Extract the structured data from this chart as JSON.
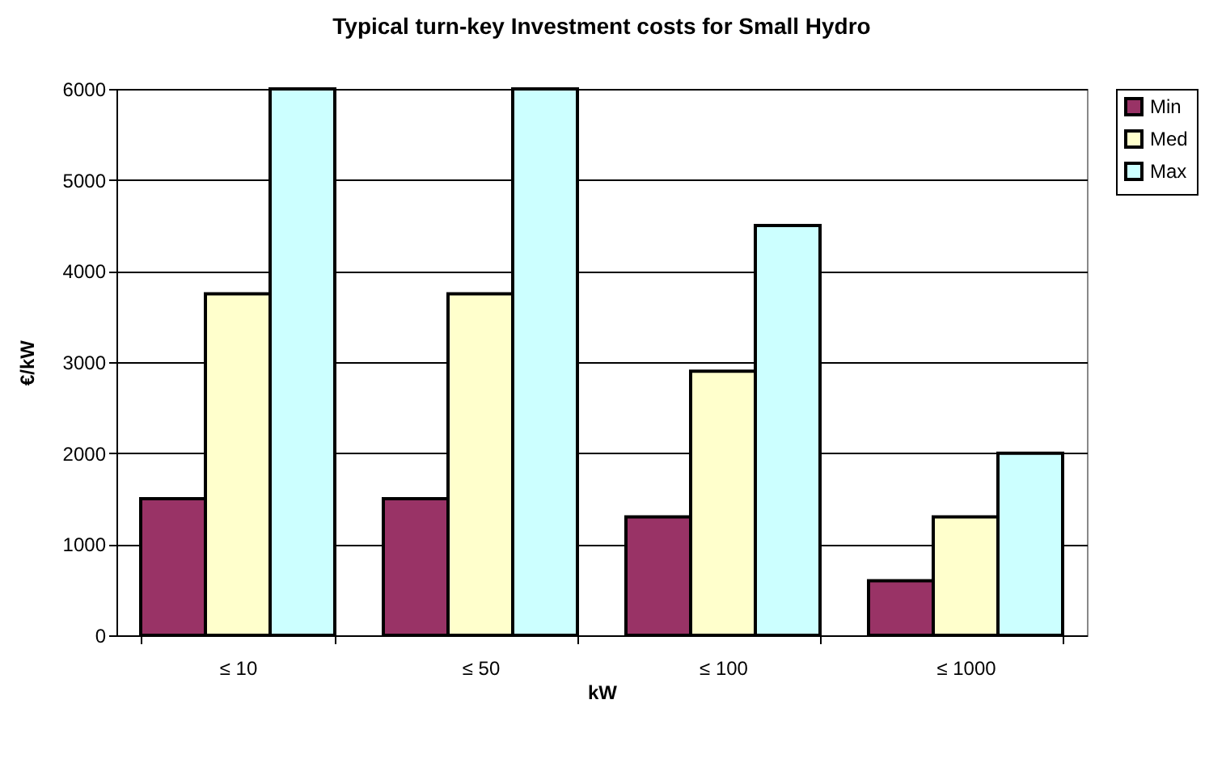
{
  "chart_data": {
    "type": "bar",
    "title": "Typical turn-key Investment costs for Small Hydro",
    "xlabel": "kW",
    "ylabel": "€/kW",
    "categories": [
      "≤  10",
      "≤  50",
      "≤  100",
      "≤  1000"
    ],
    "series": [
      {
        "name": "Min",
        "color": "#993366",
        "values": [
          1500,
          1500,
          1300,
          600
        ]
      },
      {
        "name": "Med",
        "color": "#ffffcc",
        "values": [
          3750,
          3750,
          2900,
          1300
        ]
      },
      {
        "name": "Max",
        "color": "#ccffff",
        "values": [
          6000,
          6000,
          4500,
          2000
        ]
      }
    ],
    "ylim": [
      0,
      6000
    ],
    "yticks": [
      0,
      1000,
      2000,
      3000,
      4000,
      5000,
      6000
    ],
    "grid": "y",
    "legend": "right"
  }
}
